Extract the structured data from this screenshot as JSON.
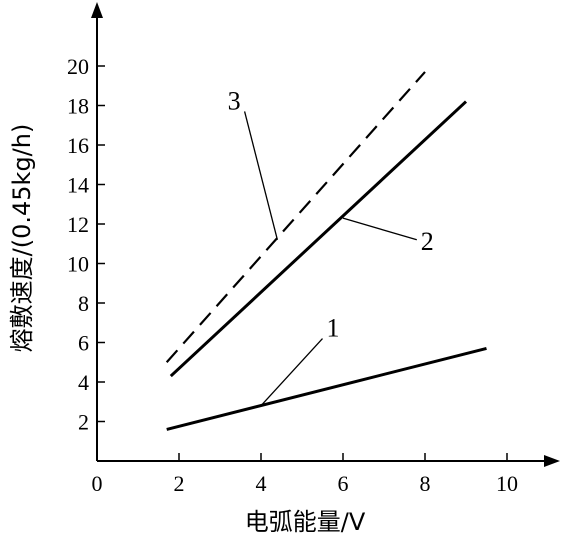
{
  "chart_data": {
    "type": "line",
    "xlabel": "电弧能量/V",
    "ylabel": "熔敷速度/(0.45kg/h)",
    "xlim": [
      0,
      11
    ],
    "ylim": [
      0,
      22
    ],
    "x_ticks": [
      "0",
      "2",
      "4",
      "6",
      "8",
      "10"
    ],
    "y_ticks": [
      "2",
      "4",
      "6",
      "8",
      "10",
      "12",
      "14",
      "16",
      "18",
      "20"
    ],
    "grid": false,
    "series": [
      {
        "name": "1",
        "style": "solid",
        "x": [
          1.7,
          9.5
        ],
        "y": [
          1.6,
          5.7
        ]
      },
      {
        "name": "2",
        "style": "solid",
        "x": [
          1.8,
          9.0
        ],
        "y": [
          4.3,
          18.2
        ]
      },
      {
        "name": "3",
        "style": "dashed",
        "x": [
          1.7,
          8.0
        ],
        "y": [
          5.0,
          19.7
        ]
      }
    ],
    "annotations": [
      {
        "text": "1",
        "series": "1",
        "point": [
          4.0,
          2.8
        ],
        "label_at": [
          5.5,
          6.2
        ]
      },
      {
        "text": "2",
        "series": "2",
        "point": [
          6.0,
          12.3
        ],
        "label_at": [
          7.8,
          11.2
        ]
      },
      {
        "text": "3",
        "series": "3",
        "point": [
          4.4,
          11.2
        ],
        "label_at": [
          3.6,
          17.7
        ]
      }
    ]
  }
}
